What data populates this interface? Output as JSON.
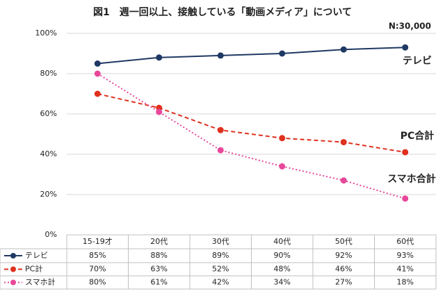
{
  "chart_data": {
    "type": "line",
    "title": "図1　週一回以上、接触している「動画メディア」について",
    "annotations": [
      "N:30,000",
      "テレビ",
      "PC合計",
      "スマホ合計"
    ],
    "categories": [
      "15-19才",
      "20代",
      "30代",
      "40代",
      "50代",
      "60代"
    ],
    "series": [
      {
        "name": "テレビ",
        "color": "#1f3864",
        "dash": "solid",
        "values": [
          85,
          88,
          89,
          90,
          92,
          93
        ],
        "value_labels": [
          "85%",
          "88%",
          "89%",
          "90%",
          "92%",
          "93%"
        ]
      },
      {
        "name": "PC計",
        "color": "#e0301e",
        "dash": "dashed",
        "values": [
          70,
          63,
          52,
          48,
          46,
          41
        ],
        "value_labels": [
          "70%",
          "63%",
          "52%",
          "48%",
          "46%",
          "41%"
        ]
      },
      {
        "name": "スマホ計",
        "color": "#e8479a",
        "dash": "dotted",
        "values": [
          80,
          61,
          42,
          34,
          27,
          18
        ],
        "value_labels": [
          "80%",
          "61%",
          "42%",
          "34%",
          "27%",
          "18%"
        ]
      }
    ],
    "ylim": [
      0,
      100
    ],
    "yticks": [
      {
        "value": 0,
        "label": "0%"
      },
      {
        "value": 20,
        "label": "20%"
      },
      {
        "value": 40,
        "label": "40%"
      },
      {
        "value": 60,
        "label": "60%"
      },
      {
        "value": 80,
        "label": "80%"
      },
      {
        "value": 100,
        "label": "100%"
      }
    ],
    "grid": true
  }
}
